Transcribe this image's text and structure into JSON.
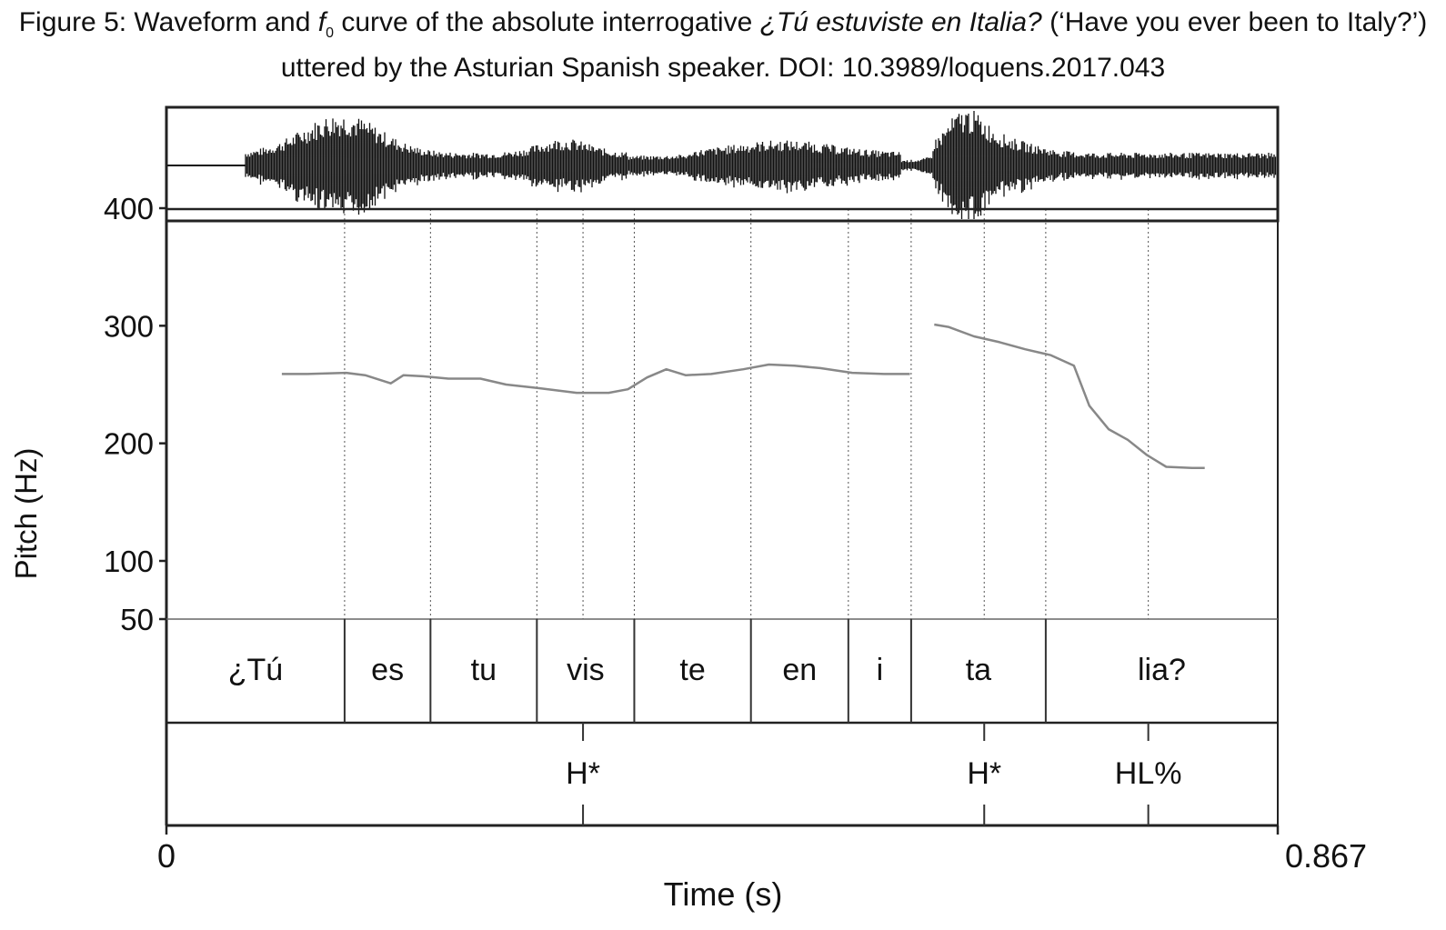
{
  "caption": {
    "prefix": "Figure 5: Waveform and ",
    "f": "f",
    "sub": "0",
    "middle": " curve of the absolute interrogative ",
    "italic": "¿Tú estuviste en Italia?",
    "suffix": " (‘Have you ever been to Italy?’) uttered by the Asturian Spanish speaker. DOI: 10.3989/loquens.2017.043"
  },
  "chart_data": {
    "type": "line",
    "title": "",
    "xlabel": "Time (s)",
    "ylabel": "Pitch (Hz)",
    "xlim": [
      0,
      0.867
    ],
    "x_tick_labels": [
      "0",
      "0.867"
    ],
    "y_ticks": [
      50,
      100,
      200,
      300,
      400
    ],
    "y_tick_labels": [
      "50",
      "100",
      "200",
      "300",
      "400"
    ],
    "ylim": [
      50,
      400
    ],
    "series": [
      {
        "segment": 1,
        "x": [
          0.09,
          0.11,
          0.14,
          0.155,
          0.175,
          0.185,
          0.2,
          0.22,
          0.245,
          0.265,
          0.29,
          0.32,
          0.345,
          0.36,
          0.375,
          0.39,
          0.405,
          0.425,
          0.45,
          0.47,
          0.49,
          0.51,
          0.535,
          0.56,
          0.58
        ],
        "y": [
          259,
          259,
          260,
          258,
          251,
          258,
          257,
          255,
          255,
          250,
          247,
          243,
          243,
          246,
          256,
          263,
          258,
          259,
          263,
          267,
          266,
          264,
          260,
          259,
          259
        ]
      },
      {
        "segment": 2,
        "x": [
          0.599,
          0.61,
          0.63,
          0.65,
          0.67,
          0.69,
          0.708,
          0.72,
          0.735,
          0.75,
          0.765,
          0.78,
          0.8,
          0.81
        ],
        "y": [
          301,
          299,
          291,
          286,
          280,
          275,
          266,
          232,
          212,
          203,
          190,
          180,
          179,
          179
        ]
      }
    ],
    "syllables": [
      {
        "label": "¿Tú",
        "start": 0.0,
        "end": 0.139
      },
      {
        "label": "es",
        "start": 0.139,
        "end": 0.206
      },
      {
        "label": "tu",
        "start": 0.206,
        "end": 0.289
      },
      {
        "label": "vis",
        "start": 0.289,
        "end": 0.365
      },
      {
        "label": "te",
        "start": 0.365,
        "end": 0.456
      },
      {
        "label": "en",
        "start": 0.456,
        "end": 0.532
      },
      {
        "label": "i",
        "start": 0.532,
        "end": 0.581
      },
      {
        "label": "ta",
        "start": 0.581,
        "end": 0.686
      },
      {
        "label": "lia?",
        "start": 0.686,
        "end": 0.867
      }
    ],
    "tones": [
      {
        "label": "H*",
        "time": 0.325
      },
      {
        "label": "H*",
        "time": 0.638
      },
      {
        "label": "HL%",
        "time": 0.766
      }
    ]
  }
}
